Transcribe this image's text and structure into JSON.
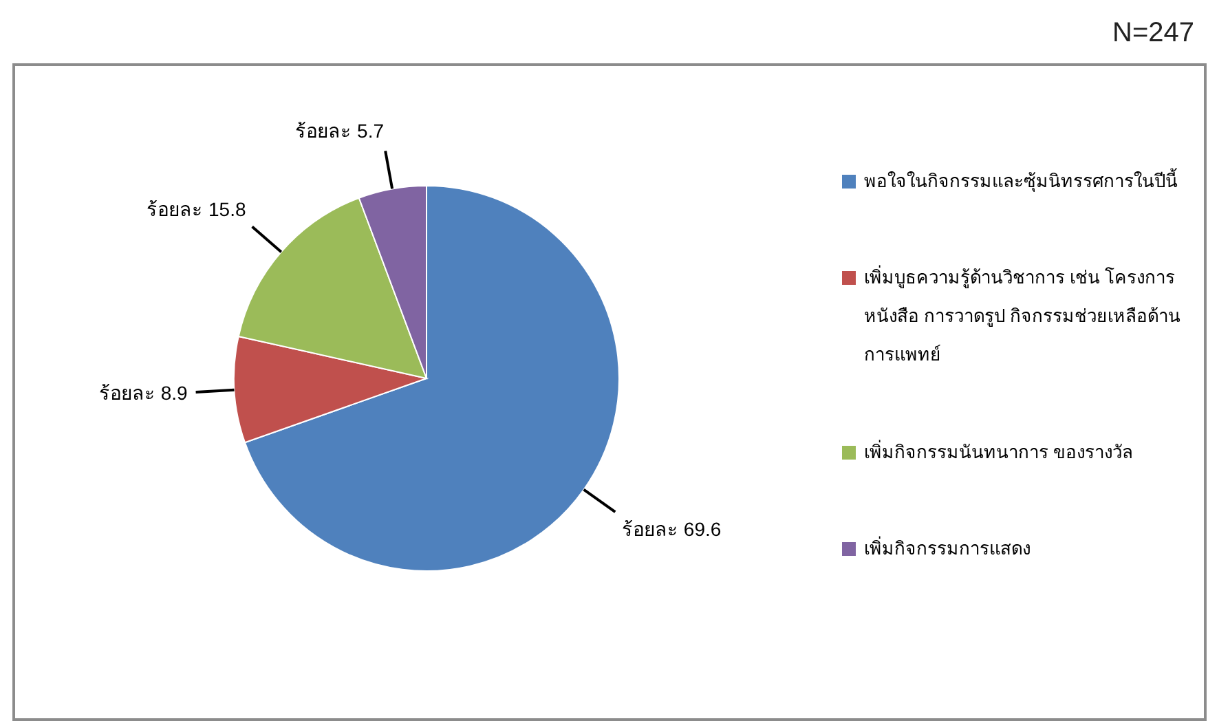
{
  "chart_data": {
    "type": "pie",
    "annotations": [
      "N=247"
    ],
    "categories": [
      "พอใจในกิจกรรมและซุ้มนิทรรศการในปีนี้",
      "เพิ่มบูธความรู้ด้านวิชาการ เช่น โครงการ หนังสือ การวาดรูป กิจกรรมช่วยเหลือด้านการแพทย์",
      "เพิ่มกิจกรรมนันทนาการ ของรางวัล",
      "เพิ่มกิจกรรมการแสดง"
    ],
    "values": [
      69.6,
      8.9,
      15.8,
      5.7
    ],
    "colors": [
      "#4f81bd",
      "#c0504d",
      "#9bbb59",
      "#8064a2"
    ],
    "value_labels": [
      "ร้อยละ 69.6",
      "ร้อยละ 8.9",
      "ร้อยละ 15.8",
      "ร้อยละ 5.7"
    ],
    "legend": "right"
  }
}
